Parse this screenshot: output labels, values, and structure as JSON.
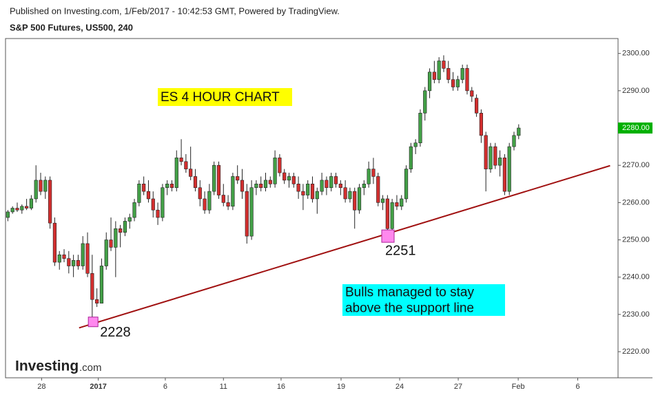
{
  "header": {
    "published": "Published on Investing.com, 1/Feb/2017 - 10:42:53 GMT, Powered by TradingView.",
    "instrument": "S&P 500 Futures, US500, 240"
  },
  "logo": {
    "brand": "Investing",
    "suffix": ".com"
  },
  "chart_data": {
    "type": "candlestick",
    "up_color": "#43a047",
    "down_color": "#d32f2f",
    "x": [
      0,
      1,
      2,
      3,
      4,
      5,
      6,
      7,
      8,
      9,
      10,
      11,
      12,
      13,
      14,
      15,
      16,
      17,
      18,
      19,
      20,
      21,
      22,
      23,
      24,
      25,
      26,
      27,
      28,
      29,
      30,
      31,
      32,
      33,
      34,
      35,
      36,
      37,
      38,
      39,
      40,
      41,
      42,
      43,
      44,
      45,
      46,
      47,
      48,
      49,
      50,
      51,
      52,
      53,
      54,
      55,
      56,
      57,
      58,
      59,
      60,
      61,
      62,
      63,
      64,
      65,
      66,
      67,
      68,
      69,
      70,
      71,
      72,
      73,
      74,
      75,
      76,
      77,
      78,
      79,
      80,
      81,
      82,
      83,
      84,
      85,
      86,
      87,
      88,
      89,
      90,
      91,
      92,
      93,
      94,
      95,
      96,
      97,
      98,
      99,
      100,
      101,
      102,
      103,
      104,
      105,
      106,
      107,
      108,
      109
    ],
    "open": [
      2256,
      2257.5,
      2258.5,
      2258,
      2259,
      2258.5,
      2261,
      2266,
      2263,
      2266,
      2254.5,
      2244,
      2246,
      2245,
      2243,
      2244.5,
      2243,
      2249,
      2241,
      2234,
      2233,
      2243,
      2250,
      2248,
      2253,
      2252,
      2255,
      2256,
      2260,
      2265,
      2263,
      2261,
      2258,
      2256,
      2264,
      2265,
      2264,
      2272,
      2271,
      2269,
      2267,
      2264,
      2261,
      2258,
      2263,
      2270,
      2262,
      2260,
      2259,
      2267,
      2266,
      2263,
      2251,
      2264,
      2265,
      2264,
      2266,
      2265,
      2272,
      2268,
      2266,
      2267,
      2265,
      2263,
      2262,
      2265,
      2261,
      2263,
      2266,
      2264,
      2267,
      2265,
      2264,
      2261,
      2263,
      2258,
      2264,
      2265,
      2269,
      2267,
      2260,
      2261,
      2253,
      2260,
      2259,
      2261,
      2269,
      2275,
      2276,
      2284,
      2290,
      2295,
      2293,
      2298,
      2296,
      2293,
      2291,
      2293,
      2296,
      2290,
      2288,
      2284,
      2278,
      2269,
      2275,
      2270,
      2272,
      2263,
      2275,
      2278
    ],
    "high": [
      2258,
      2259,
      2260,
      2259.5,
      2261,
      2262,
      2270,
      2268,
      2267,
      2267,
      2256,
      2247,
      2247.5,
      2247,
      2246,
      2246,
      2251,
      2252,
      2246,
      2237,
      2245,
      2252,
      2256,
      2255,
      2254,
      2256,
      2257,
      2261,
      2266,
      2267,
      2266,
      2263,
      2260,
      2265,
      2266,
      2266,
      2274,
      2277,
      2273,
      2275,
      2269,
      2266,
      2263,
      2265,
      2271,
      2271,
      2265,
      2262,
      2268,
      2270,
      2269,
      2265,
      2266,
      2266,
      2267,
      2268,
      2267,
      2274,
      2273,
      2269,
      2268,
      2268,
      2267,
      2265,
      2266,
      2267,
      2264,
      2268,
      2267,
      2268,
      2268,
      2266,
      2266,
      2264,
      2264,
      2265,
      2266,
      2271,
      2272,
      2268,
      2262,
      2262,
      2261,
      2262,
      2262,
      2270,
      2276,
      2277,
      2285,
      2291,
      2296,
      2298,
      2299,
      2299.5,
      2298,
      2295,
      2294,
      2297,
      2297,
      2291,
      2289,
      2285,
      2279,
      2276,
      2276,
      2274,
      2273,
      2276,
      2279,
      2281
    ],
    "low": [
      2255,
      2257,
      2257.5,
      2257,
      2258,
      2258,
      2260,
      2262,
      2261,
      2253,
      2243,
      2242,
      2244,
      2241,
      2240,
      2242,
      2242,
      2240,
      2228,
      2232,
      2233,
      2242,
      2247,
      2240,
      2248,
      2251,
      2253,
      2255,
      2259,
      2262,
      2260,
      2256,
      2254,
      2255,
      2262,
      2263,
      2263,
      2270,
      2268,
      2266,
      2263,
      2259,
      2257,
      2257,
      2262,
      2261,
      2259,
      2258,
      2258,
      2265,
      2261,
      2249,
      2250,
      2262,
      2263,
      2263,
      2264,
      2264,
      2267,
      2265,
      2264,
      2264,
      2261,
      2258,
      2261,
      2260,
      2257,
      2262,
      2262,
      2263,
      2264,
      2262,
      2260,
      2260,
      2253,
      2257,
      2262,
      2264,
      2265,
      2259,
      2258,
      2251,
      2252,
      2258,
      2258,
      2260,
      2268,
      2273,
      2275,
      2282,
      2288,
      2292,
      2292,
      2295,
      2292,
      2290,
      2290,
      2292,
      2289,
      2287,
      2283,
      2276,
      2263,
      2268,
      2269,
      2267,
      2262,
      2262,
      2274,
      2277
    ],
    "close": [
      2257.5,
      2258.5,
      2258,
      2259,
      2258.5,
      2261,
      2266,
      2263,
      2266,
      2254.5,
      2244,
      2246,
      2245,
      2243,
      2244.5,
      2243,
      2249,
      2241,
      2234,
      2233,
      2243,
      2250,
      2248,
      2253,
      2252,
      2255,
      2256,
      2260,
      2265,
      2263,
      2261,
      2258,
      2256,
      2264,
      2265,
      2264,
      2272,
      2271,
      2269,
      2267,
      2264,
      2261,
      2258,
      2263,
      2270,
      2262,
      2260,
      2259,
      2267,
      2266,
      2263,
      2251,
      2264,
      2265,
      2264,
      2266,
      2265,
      2272,
      2268,
      2266,
      2267,
      2265,
      2263,
      2262,
      2265,
      2261,
      2263,
      2266,
      2264,
      2267,
      2265,
      2264,
      2261,
      2263,
      2258,
      2264,
      2265,
      2269,
      2267,
      2260,
      2261,
      2253,
      2260,
      2259,
      2261,
      2269,
      2275,
      2276,
      2284,
      2290,
      2295,
      2293,
      2298,
      2296,
      2293,
      2291,
      2293,
      2296,
      2290,
      2288.5,
      2284,
      2278,
      2269,
      2275,
      2270,
      2272,
      2263,
      2275,
      2278,
      2280
    ],
    "xlim": [
      -0.5,
      130.2
    ],
    "xticks": [
      {
        "value": 7.2,
        "label": "28"
      },
      {
        "value": 19.3,
        "label": "2017"
      },
      {
        "value": 33.6,
        "label": "6"
      },
      {
        "value": 46,
        "label": "11"
      },
      {
        "value": 58.3,
        "label": "16"
      },
      {
        "value": 71.1,
        "label": "19"
      },
      {
        "value": 83.6,
        "label": "24"
      },
      {
        "value": 96.1,
        "label": "27"
      },
      {
        "value": 108.9,
        "label": "Feb"
      },
      {
        "value": 121.6,
        "label": "6"
      }
    ],
    "ylim": [
      2213,
      2304
    ],
    "yticks": [
      {
        "value": 2220,
        "label": "2220.00"
      },
      {
        "value": 2230,
        "label": "2230.00"
      },
      {
        "value": 2240,
        "label": "2240.00"
      },
      {
        "value": 2250,
        "label": "2250.00"
      },
      {
        "value": 2260,
        "label": "2260.00"
      },
      {
        "value": 2270,
        "label": "2270.00"
      },
      {
        "value": 2280,
        "label": "2280.00"
      },
      {
        "value": 2290,
        "label": "2290.00"
      },
      {
        "value": 2300,
        "label": "2300.00"
      }
    ],
    "last_price": {
      "value": 2280,
      "label": "2280.00",
      "color": "#00b000"
    },
    "support_line": {
      "x": [
        15.2,
        128.5
      ],
      "y": [
        2226.4,
        2269.9
      ],
      "color": "#a01010"
    },
    "markers": [
      {
        "x": 18.2,
        "y": 2228,
        "label": "2228"
      },
      {
        "x": 81.1,
        "y": 2251,
        "label": "2251"
      }
    ],
    "annotations": [
      {
        "lines": [
          "ES 4 HOUR CHART"
        ],
        "color": "#ffff00"
      },
      {
        "lines": [
          "Bulls managed to stay",
          "above the support line"
        ],
        "color": "#00ffff"
      }
    ]
  }
}
